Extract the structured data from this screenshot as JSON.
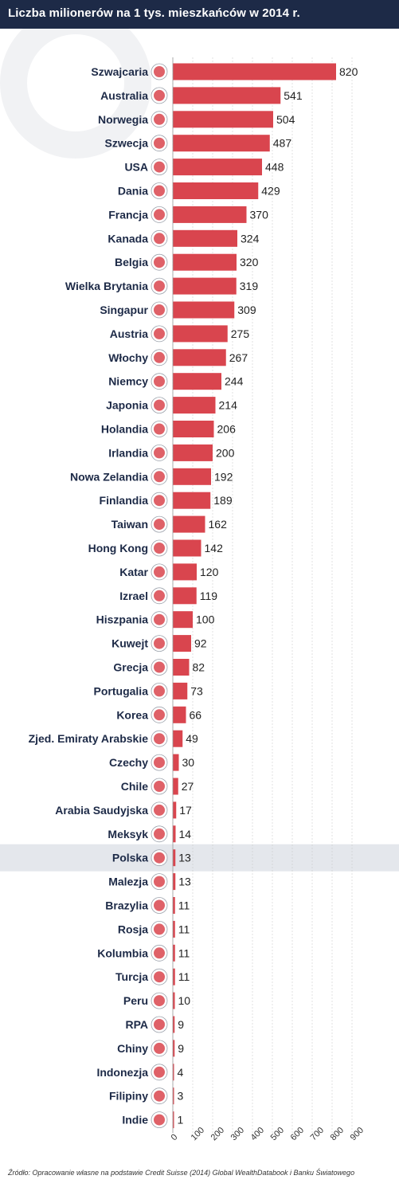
{
  "title": "Liczba milionerów na 1 tys. mieszkańców w 2014 r.",
  "source": "Źródło: Opracowanie własne na podstawie Credit Suisse (2014) Global WealthDatabook i Banku Światowego",
  "colors": {
    "header_bg": "#1d2a47",
    "bar": "#d9454e",
    "label": "#1d2a47",
    "highlight_row": "#e4e7ec",
    "grid": "#cccccc"
  },
  "chart_data": {
    "type": "bar",
    "orientation": "horizontal",
    "title": "Liczba milionerów na 1 tys. mieszkańców w 2014 r.",
    "xlabel": "",
    "ylabel": "",
    "xlim": [
      0,
      900
    ],
    "x_ticks": [
      0,
      100,
      200,
      300,
      400,
      500,
      600,
      700,
      800,
      900
    ],
    "grid": true,
    "highlighted_category": "Polska",
    "categories": [
      "Szwajcaria",
      "Australia",
      "Norwegia",
      "Szwecja",
      "USA",
      "Dania",
      "Francja",
      "Kanada",
      "Belgia",
      "Wielka Brytania",
      "Singapur",
      "Austria",
      "Włochy",
      "Niemcy",
      "Japonia",
      "Holandia",
      "Irlandia",
      "Nowa Zelandia",
      "Finlandia",
      "Taiwan",
      "Hong Kong",
      "Katar",
      "Izrael",
      "Hiszpania",
      "Kuwejt",
      "Grecja",
      "Portugalia",
      "Korea",
      "Zjed. Emiraty Arabskie",
      "Czechy",
      "Chile",
      "Arabia Saudyjska",
      "Meksyk",
      "Polska",
      "Malezja",
      "Brazylia",
      "Rosja",
      "Kolumbia",
      "Turcja",
      "Peru",
      "RPA",
      "Chiny",
      "Indonezja",
      "Filipiny",
      "Indie"
    ],
    "values": [
      820,
      541,
      504,
      487,
      448,
      429,
      370,
      324,
      320,
      319,
      309,
      275,
      267,
      244,
      214,
      206,
      200,
      192,
      189,
      162,
      142,
      120,
      119,
      100,
      92,
      82,
      73,
      66,
      49,
      30,
      27,
      17,
      14,
      13,
      13,
      11,
      11,
      11,
      11,
      10,
      9,
      9,
      4,
      3,
      1
    ],
    "flag_icons": [
      "switzerland-flag-icon",
      "australia-flag-icon",
      "norway-flag-icon",
      "sweden-flag-icon",
      "usa-flag-icon",
      "denmark-flag-icon",
      "france-flag-icon",
      "canada-flag-icon",
      "belgium-flag-icon",
      "uk-flag-icon",
      "singapore-flag-icon",
      "austria-flag-icon",
      "italy-flag-icon",
      "germany-flag-icon",
      "japan-flag-icon",
      "netherlands-flag-icon",
      "ireland-flag-icon",
      "new-zealand-flag-icon",
      "finland-flag-icon",
      "taiwan-flag-icon",
      "hong-kong-flag-icon",
      "qatar-flag-icon",
      "israel-flag-icon",
      "spain-flag-icon",
      "kuwait-flag-icon",
      "greece-flag-icon",
      "portugal-flag-icon",
      "korea-flag-icon",
      "uae-flag-icon",
      "czechia-flag-icon",
      "chile-flag-icon",
      "saudi-arabia-flag-icon",
      "mexico-flag-icon",
      "poland-flag-icon",
      "malaysia-flag-icon",
      "brazil-flag-icon",
      "russia-flag-icon",
      "colombia-flag-icon",
      "turkey-flag-icon",
      "peru-flag-icon",
      "south-africa-flag-icon",
      "china-flag-icon",
      "indonesia-flag-icon",
      "philippines-flag-icon",
      "india-flag-icon"
    ]
  }
}
